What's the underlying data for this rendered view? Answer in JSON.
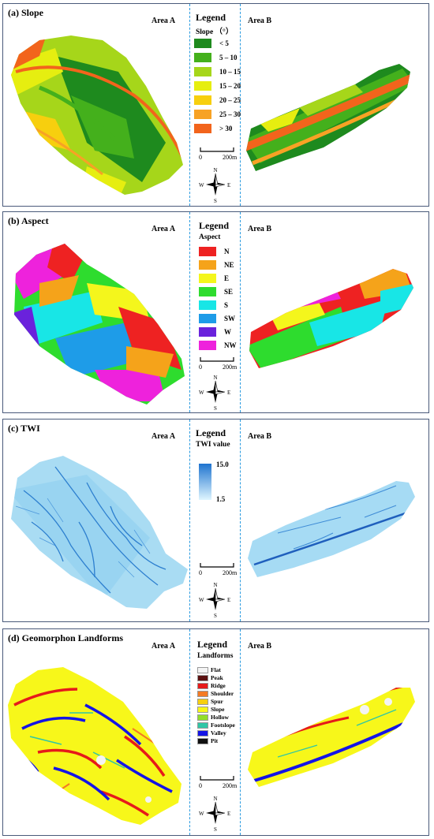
{
  "panels": {
    "slope": {
      "title": "(a) Slope",
      "area_a": "Area A",
      "area_b": "Area B",
      "legend_title": "Legend",
      "legend_sub": "Slope （°）",
      "classes": [
        {
          "label": "< 5",
          "color": "#1e8a1e"
        },
        {
          "label": "5 – 10",
          "color": "#44b01c"
        },
        {
          "label": "10 – 15",
          "color": "#a6d61a"
        },
        {
          "label": "15 – 20",
          "color": "#e6ee10"
        },
        {
          "label": "20 – 25",
          "color": "#f7cf0e"
        },
        {
          "label": "25 – 30",
          "color": "#f7a225"
        },
        {
          "label": "> 30",
          "color": "#f2641c"
        }
      ]
    },
    "aspect": {
      "title": "(b) Aspect",
      "area_a": "Area A",
      "area_b": "Area B",
      "legend_title": "Legend",
      "legend_sub": "Aspect",
      "classes": [
        {
          "label": "N",
          "color": "#ee2222"
        },
        {
          "label": "NE",
          "color": "#f5a31a"
        },
        {
          "label": "E",
          "color": "#f4f61c"
        },
        {
          "label": "SE",
          "color": "#2edc2e"
        },
        {
          "label": "S",
          "color": "#18e6e6"
        },
        {
          "label": "SW",
          "color": "#1e9ce8"
        },
        {
          "label": "W",
          "color": "#6a22dc"
        },
        {
          "label": "NW",
          "color": "#ee22dc"
        }
      ]
    },
    "twi": {
      "title": "(c) TWI",
      "area_a": "Area A",
      "area_b": "Area B",
      "legend_title": "Legend",
      "legend_sub": "TWI value",
      "max": "15.0",
      "min": "1.5",
      "color_high": "#1f74cf",
      "color_low": "#dff6ff"
    },
    "landforms": {
      "title": "(d) Geomorphon Landforms",
      "area_a": "Area A",
      "area_b": "Area B",
      "legend_title": "Legend",
      "legend_sub": "Landforms",
      "classes": [
        {
          "label": "Flat",
          "color": "#f4f4f4"
        },
        {
          "label": "Peak",
          "color": "#5a1010"
        },
        {
          "label": "Ridge",
          "color": "#e61a1a"
        },
        {
          "label": "Shoulder",
          "color": "#f47a24"
        },
        {
          "label": "Spur",
          "color": "#f7d010"
        },
        {
          "label": "Slope",
          "color": "#f7f71a"
        },
        {
          "label": "Hollow",
          "color": "#92de2a"
        },
        {
          "label": "Footslope",
          "color": "#2fc6a6"
        },
        {
          "label": "Valley",
          "color": "#1414e6"
        },
        {
          "label": "Pit",
          "color": "#101010"
        }
      ]
    }
  },
  "scale_bar": {
    "zero": "0",
    "distance": "200m"
  },
  "compass": {
    "n": "N",
    "s": "S",
    "e": "E",
    "w": "W"
  }
}
